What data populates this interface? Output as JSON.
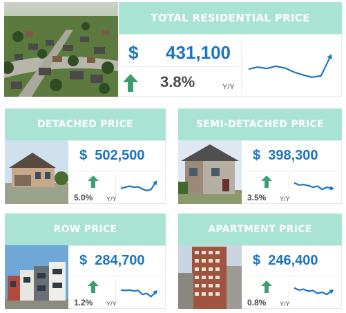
{
  "total": {
    "title": "TOTAL RESIDENTIAL PRICE",
    "currency": "$",
    "price": "431,100",
    "change": "3.8%",
    "change_unit": "Y/Y",
    "trend": "up",
    "sparkline": [
      0.62,
      0.55,
      0.6,
      0.52,
      0.58,
      0.72,
      0.82,
      0.9,
      0.85,
      0.2
    ]
  },
  "cards": [
    {
      "title": "DETACHED PRICE",
      "currency": "$",
      "price": "502,500",
      "change": "5.0%",
      "change_unit": "Y/Y",
      "trend": "up",
      "sparkline": [
        0.55,
        0.5,
        0.45,
        0.5,
        0.48,
        0.58,
        0.65,
        0.6,
        0.3
      ]
    },
    {
      "title": "SEMI-DETACHED PRICE",
      "currency": "$",
      "price": "398,300",
      "change": "3.5%",
      "change_unit": "Y/Y",
      "trend": "up",
      "sparkline": [
        0.3,
        0.4,
        0.38,
        0.42,
        0.5,
        0.45,
        0.6,
        0.5,
        0.55
      ]
    },
    {
      "title": "ROW PRICE",
      "currency": "$",
      "price": "284,700",
      "change": "1.2%",
      "change_unit": "Y/Y",
      "trend": "up",
      "sparkline": [
        0.4,
        0.42,
        0.4,
        0.44,
        0.42,
        0.6,
        0.55,
        0.7,
        0.5
      ]
    },
    {
      "title": "APARTMENT PRICE",
      "currency": "$",
      "price": "246,400",
      "change": "0.8%",
      "change_unit": "Y/Y",
      "trend": "up",
      "sparkline": [
        0.3,
        0.4,
        0.36,
        0.45,
        0.42,
        0.55,
        0.5,
        0.6,
        0.45
      ]
    }
  ],
  "colors": {
    "header_bg": "#a8e3d3",
    "price_text": "#1a74c1",
    "arrow": "#3d9e74",
    "sparkline": "#1a74c1"
  },
  "icons": {
    "trend_up": "arrow-up-icon"
  }
}
